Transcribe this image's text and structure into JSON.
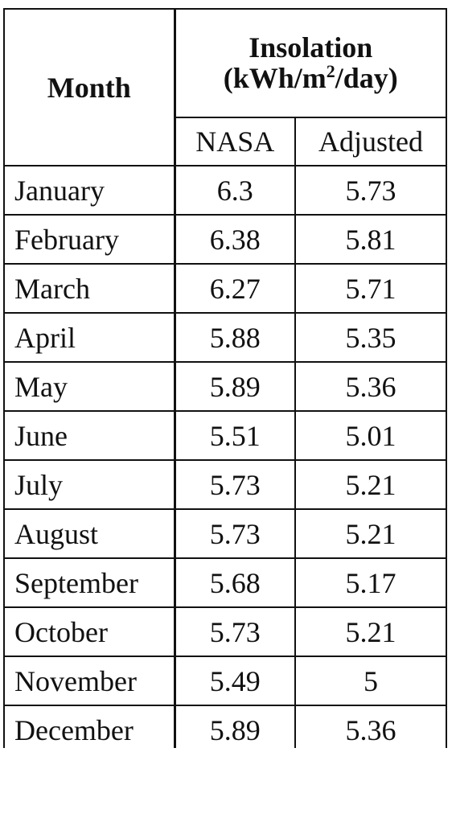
{
  "table": {
    "headers": {
      "month": "Month",
      "insolation_line1": "Insolation",
      "insolation_line2_pre": "(kWh/m",
      "insolation_line2_sup": "2",
      "insolation_line2_post": "/day)",
      "nasa": "NASA",
      "adjusted": "Adjusted"
    },
    "rows": [
      {
        "month": "January",
        "nasa": "6.3",
        "adjusted": "5.73"
      },
      {
        "month": "February",
        "nasa": "6.38",
        "adjusted": "5.81"
      },
      {
        "month": "March",
        "nasa": "6.27",
        "adjusted": "5.71"
      },
      {
        "month": "April",
        "nasa": "5.88",
        "adjusted": "5.35"
      },
      {
        "month": "May",
        "nasa": "5.89",
        "adjusted": "5.36"
      },
      {
        "month": "June",
        "nasa": "5.51",
        "adjusted": "5.01"
      },
      {
        "month": "July",
        "nasa": "5.73",
        "adjusted": "5.21"
      },
      {
        "month": "August",
        "nasa": "5.73",
        "adjusted": "5.21"
      },
      {
        "month": "September",
        "nasa": "5.68",
        "adjusted": "5.17"
      },
      {
        "month": "October",
        "nasa": "5.73",
        "adjusted": "5.21"
      },
      {
        "month": "November",
        "nasa": "5.49",
        "adjusted": "5"
      },
      {
        "month": "December",
        "nasa": "5.89",
        "adjusted": "5.36"
      }
    ]
  }
}
